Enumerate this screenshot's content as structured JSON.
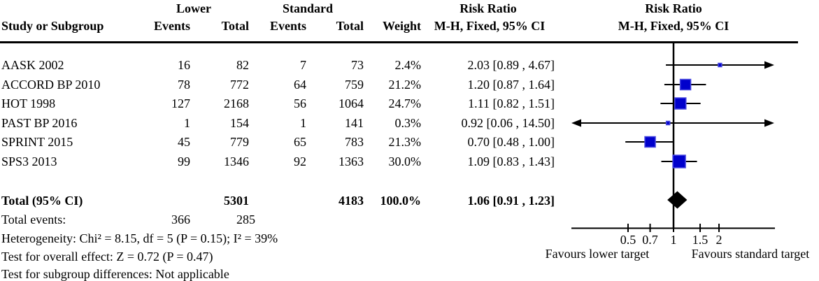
{
  "header": {
    "study_col": "Study or Subgroup",
    "group1": "Lower",
    "group2": "Standard",
    "events1": "Events",
    "total1": "Total",
    "events2": "Events",
    "total2": "Total",
    "weight": "Weight",
    "rr_title": "Risk Ratio",
    "rr_subtitle": "M-H, Fixed, 95% CI",
    "plot_title": "Risk Ratio",
    "plot_subtitle": "M-H, Fixed, 95% CI"
  },
  "rows": [
    {
      "study": "AASK 2002",
      "e1": "16",
      "t1": "82",
      "e2": "7",
      "t2": "73",
      "weight": "2.4%",
      "rr_text": "2.03 [0.89 , 4.67]"
    },
    {
      "study": "ACCORD BP 2010",
      "e1": "78",
      "t1": "772",
      "e2": "64",
      "t2": "759",
      "weight": "21.2%",
      "rr_text": "1.20 [0.87 , 1.64]"
    },
    {
      "study": "HOT 1998",
      "e1": "127",
      "t1": "2168",
      "e2": "56",
      "t2": "1064",
      "weight": "24.7%",
      "rr_text": "1.11 [0.82 , 1.51]"
    },
    {
      "study": "PAST BP 2016",
      "e1": "1",
      "t1": "154",
      "e2": "1",
      "t2": "141",
      "weight": "0.3%",
      "rr_text": "0.92 [0.06 , 14.50]"
    },
    {
      "study": "SPRINT 2015",
      "e1": "45",
      "t1": "779",
      "e2": "65",
      "t2": "783",
      "weight": "21.3%",
      "rr_text": "0.70 [0.48 , 1.00]"
    },
    {
      "study": "SPS3 2013",
      "e1": "99",
      "t1": "1346",
      "e2": "92",
      "t2": "1363",
      "weight": "30.0%",
      "rr_text": "1.09 [0.83 , 1.43]"
    }
  ],
  "totals": {
    "label": "Total (95% CI)",
    "t1": "5301",
    "t2": "4183",
    "weight": "100.0%",
    "rr_text": "1.06 [0.91 , 1.23]",
    "events_label": "Total events:",
    "e1": "366",
    "e2": "285"
  },
  "footer": {
    "heterogeneity": "Heterogeneity: Chi² = 8.15, df = 5 (P = 0.15); I² = 39%",
    "overall_effect": "Test for overall effect: Z = 0.72 (P = 0.47)",
    "subgroup": "Test for subgroup differences: Not applicable"
  },
  "axis_labels": {
    "left": "Favours lower target",
    "right": "Favours standard target"
  },
  "chart_data": {
    "type": "forest",
    "scale": "log",
    "effect_measure": "Risk Ratio (M-H, Fixed, 95% CI)",
    "ticks": [
      0.5,
      0.7,
      1,
      1.5,
      2
    ],
    "studies": [
      {
        "name": "AASK 2002",
        "rr": 2.03,
        "ci_low": 0.89,
        "ci_high": 4.67,
        "weight_pct": 2.4
      },
      {
        "name": "ACCORD BP 2010",
        "rr": 1.2,
        "ci_low": 0.87,
        "ci_high": 1.64,
        "weight_pct": 21.2
      },
      {
        "name": "HOT 1998",
        "rr": 1.11,
        "ci_low": 0.82,
        "ci_high": 1.51,
        "weight_pct": 24.7
      },
      {
        "name": "PAST BP 2016",
        "rr": 0.92,
        "ci_low": 0.06,
        "ci_high": 14.5,
        "weight_pct": 0.3
      },
      {
        "name": "SPRINT 2015",
        "rr": 0.7,
        "ci_low": 0.48,
        "ci_high": 1.0,
        "weight_pct": 21.3
      },
      {
        "name": "SPS3 2013",
        "rr": 1.09,
        "ci_low": 0.83,
        "ci_high": 1.43,
        "weight_pct": 30.0
      }
    ],
    "total": {
      "rr": 1.06,
      "ci_low": 0.91,
      "ci_high": 1.23,
      "weight_pct": 100.0
    },
    "colors": {
      "square": "#0000cc",
      "square_border": "#4848e0",
      "diamond": "#000000",
      "line": "#000000"
    }
  }
}
